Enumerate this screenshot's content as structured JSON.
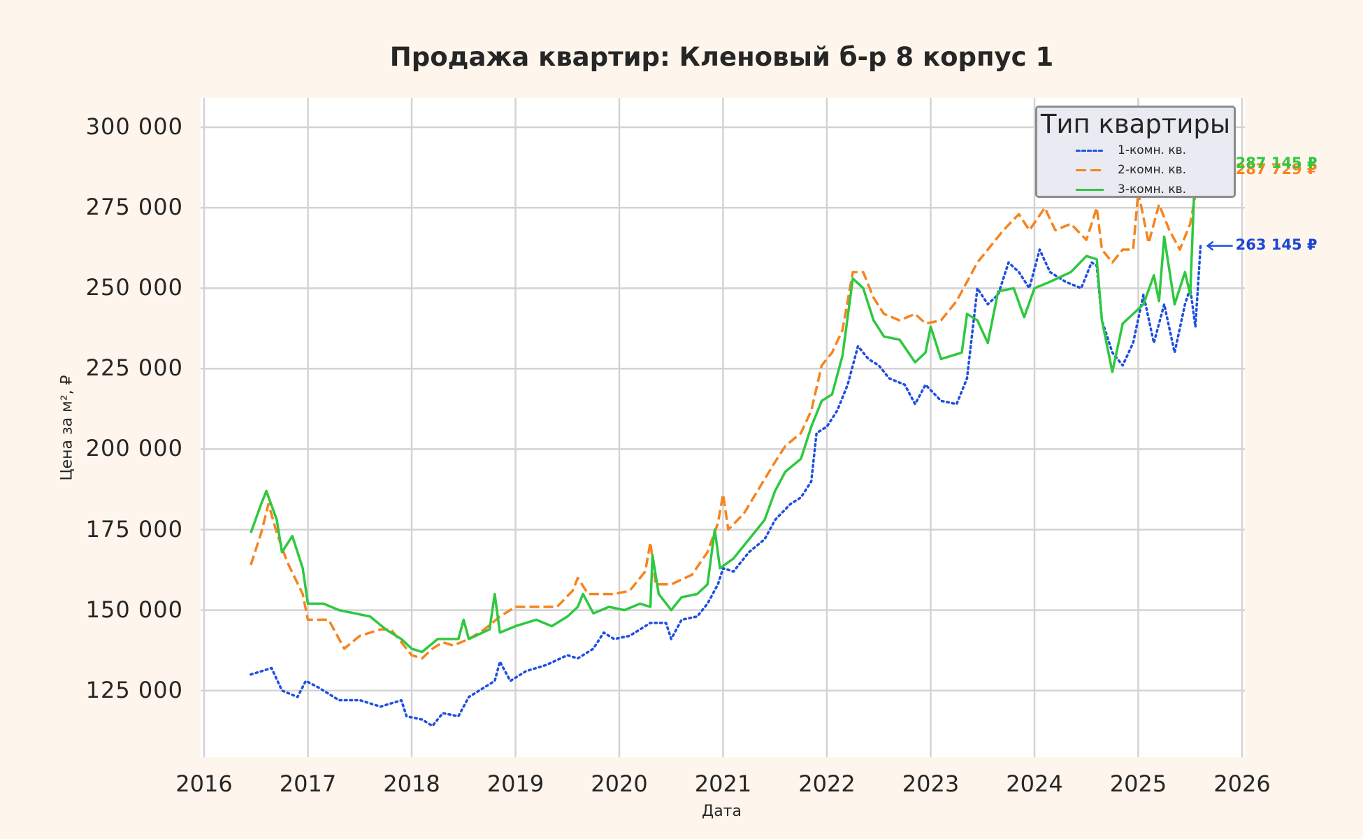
{
  "chart_data": {
    "type": "line",
    "title": "Продажа квартир: Кленовый б-р 8 корпус 1",
    "xlabel": "Дата",
    "ylabel": "Цена за м², ₽",
    "xlim": [
      2016,
      2026
    ],
    "ylim": [
      104000,
      309000
    ],
    "x_ticks": [
      "2016",
      "2017",
      "2018",
      "2019",
      "2020",
      "2021",
      "2022",
      "2023",
      "2024",
      "2025",
      "2026"
    ],
    "y_ticks": [
      "300 000",
      "275 000",
      "250 000",
      "225 000",
      "200 000",
      "175 000",
      "150 000",
      "125 000"
    ],
    "y_tick_values": [
      300000,
      275000,
      250000,
      225000,
      200000,
      175000,
      150000,
      125000
    ],
    "grid": true,
    "legend": {
      "title": "Тип квартиры",
      "position": "upper right",
      "entries": [
        "1-комн. кв.",
        "2-комн. кв.",
        "3-комн. кв."
      ]
    },
    "series": [
      {
        "name": "1-комн. кв.",
        "color": "#1f4fe0",
        "style": "dotted",
        "x": [
          2016.45,
          2016.55,
          2016.65,
          2016.75,
          2016.9,
          2016.98,
          2017.1,
          2017.3,
          2017.5,
          2017.7,
          2017.9,
          2017.95,
          2018.1,
          2018.2,
          2018.3,
          2018.45,
          2018.55,
          2018.7,
          2018.8,
          2018.85,
          2018.95,
          2019.1,
          2019.3,
          2019.5,
          2019.6,
          2019.75,
          2019.85,
          2019.95,
          2020.1,
          2020.2,
          2020.3,
          2020.45,
          2020.5,
          2020.6,
          2020.75,
          2020.85,
          2020.95,
          2021.0,
          2021.1,
          2021.25,
          2021.4,
          2021.5,
          2021.65,
          2021.75,
          2021.85,
          2021.9,
          2022.0,
          2022.1,
          2022.2,
          2022.3,
          2022.4,
          2022.5,
          2022.6,
          2022.75,
          2022.85,
          2022.95,
          2023.1,
          2023.25,
          2023.35,
          2023.45,
          2023.55,
          2023.65,
          2023.75,
          2023.85,
          2023.95,
          2024.05,
          2024.15,
          2024.3,
          2024.45,
          2024.55,
          2024.6,
          2024.65,
          2024.75,
          2024.85,
          2024.95,
          2025.05,
          2025.15,
          2025.25,
          2025.35,
          2025.45,
          2025.5,
          2025.55,
          2025.6
        ],
        "values": [
          130000,
          131000,
          132000,
          125000,
          123000,
          128000,
          126000,
          122000,
          122000,
          120000,
          122000,
          117000,
          116000,
          114000,
          118000,
          117000,
          123000,
          126000,
          128000,
          134000,
          128000,
          131000,
          133000,
          136000,
          135000,
          138000,
          143000,
          141000,
          142000,
          144000,
          146000,
          146000,
          141000,
          147000,
          148000,
          152000,
          158000,
          163000,
          162000,
          168000,
          172000,
          178000,
          183000,
          185000,
          190000,
          205000,
          207000,
          212000,
          220000,
          232000,
          228000,
          226000,
          222000,
          220000,
          214000,
          220000,
          215000,
          214000,
          222000,
          250000,
          245000,
          248000,
          258000,
          255000,
          250000,
          262000,
          255000,
          252000,
          250000,
          258000,
          257000,
          240000,
          230000,
          226000,
          233000,
          248000,
          233000,
          245000,
          230000,
          245000,
          250000,
          238000,
          263145
        ],
        "last_label": "263 145 ₽"
      },
      {
        "name": "2-комн. кв.",
        "color": "#f5841f",
        "style": "dashed",
        "x": [
          2016.45,
          2016.55,
          2016.62,
          2016.7,
          2016.8,
          2016.95,
          2017.0,
          2017.2,
          2017.35,
          2017.5,
          2017.7,
          2017.8,
          2017.9,
          2018.0,
          2018.1,
          2018.2,
          2018.3,
          2018.4,
          2018.55,
          2018.7,
          2018.85,
          2019.0,
          2019.2,
          2019.4,
          2019.55,
          2019.6,
          2019.7,
          2019.8,
          2019.95,
          2020.1,
          2020.25,
          2020.3,
          2020.35,
          2020.5,
          2020.7,
          2020.85,
          2020.95,
          2021.0,
          2021.05,
          2021.2,
          2021.35,
          2021.5,
          2021.6,
          2021.75,
          2021.85,
          2021.95,
          2022.05,
          2022.15,
          2022.25,
          2022.35,
          2022.45,
          2022.55,
          2022.7,
          2022.85,
          2022.95,
          2023.1,
          2023.25,
          2023.35,
          2023.45,
          2023.55,
          2023.7,
          2023.85,
          2023.95,
          2024.1,
          2024.2,
          2024.35,
          2024.5,
          2024.6,
          2024.65,
          2024.75,
          2024.85,
          2024.95,
          2025.0,
          2025.1,
          2025.2,
          2025.3,
          2025.4,
          2025.5,
          2025.6
        ],
        "values": [
          164000,
          174000,
          183000,
          174000,
          165000,
          155000,
          147000,
          147000,
          138000,
          142000,
          144000,
          144000,
          140000,
          136000,
          135000,
          138000,
          140000,
          139000,
          141000,
          144000,
          148000,
          151000,
          151000,
          151000,
          156000,
          160000,
          155000,
          155000,
          155000,
          156000,
          162000,
          171000,
          158000,
          158000,
          161000,
          168000,
          177000,
          186000,
          175000,
          180000,
          188000,
          196000,
          201000,
          205000,
          212000,
          226000,
          230000,
          237000,
          255000,
          255000,
          247000,
          242000,
          240000,
          242000,
          239000,
          240000,
          246000,
          252000,
          258000,
          262000,
          268000,
          273000,
          268000,
          275000,
          268000,
          270000,
          265000,
          275000,
          262000,
          258000,
          262000,
          262000,
          280000,
          264000,
          276000,
          268000,
          262000,
          270000,
          287729
        ],
        "last_label": "287 729 ₽"
      },
      {
        "name": "3-комн. кв.",
        "color": "#2ec840",
        "style": "solid",
        "x": [
          2016.45,
          2016.55,
          2016.6,
          2016.7,
          2016.75,
          2016.85,
          2016.95,
          2017.0,
          2017.15,
          2017.3,
          2017.45,
          2017.6,
          2017.75,
          2017.9,
          2018.0,
          2018.1,
          2018.25,
          2018.45,
          2018.5,
          2018.55,
          2018.75,
          2018.8,
          2018.85,
          2019.0,
          2019.2,
          2019.35,
          2019.5,
          2019.6,
          2019.65,
          2019.75,
          2019.9,
          2020.05,
          2020.2,
          2020.3,
          2020.32,
          2020.38,
          2020.5,
          2020.6,
          2020.75,
          2020.85,
          2020.92,
          2020.97,
          2021.1,
          2021.25,
          2021.4,
          2021.5,
          2021.6,
          2021.75,
          2021.85,
          2021.95,
          2022.05,
          2022.15,
          2022.25,
          2022.35,
          2022.45,
          2022.55,
          2022.7,
          2022.85,
          2022.95,
          2023.0,
          2023.1,
          2023.3,
          2023.35,
          2023.45,
          2023.55,
          2023.65,
          2023.8,
          2023.9,
          2024.0,
          2024.15,
          2024.35,
          2024.5,
          2024.6,
          2024.65,
          2024.75,
          2024.85,
          2024.95,
          2025.05,
          2025.15,
          2025.2,
          2025.25,
          2025.35,
          2025.45,
          2025.5,
          2025.55,
          2025.6
        ],
        "values": [
          174000,
          183000,
          187000,
          178000,
          168000,
          173000,
          163000,
          152000,
          152000,
          150000,
          149000,
          148000,
          144000,
          141000,
          138000,
          137000,
          141000,
          141000,
          147000,
          141000,
          144000,
          155000,
          143000,
          145000,
          147000,
          145000,
          148000,
          151000,
          155000,
          149000,
          151000,
          150000,
          152000,
          151000,
          167000,
          155000,
          150000,
          154000,
          155000,
          158000,
          175000,
          163000,
          166000,
          172000,
          178000,
          187000,
          193000,
          197000,
          207000,
          215000,
          217000,
          229000,
          253000,
          250000,
          240000,
          235000,
          234000,
          227000,
          230000,
          238000,
          228000,
          230000,
          242000,
          240000,
          233000,
          249000,
          250000,
          241000,
          250000,
          252000,
          255000,
          260000,
          259000,
          240000,
          224000,
          239000,
          242000,
          245000,
          254000,
          246000,
          266000,
          245000,
          255000,
          248000,
          290000,
          287145
        ],
        "last_label": "287 145 ₽"
      }
    ]
  }
}
